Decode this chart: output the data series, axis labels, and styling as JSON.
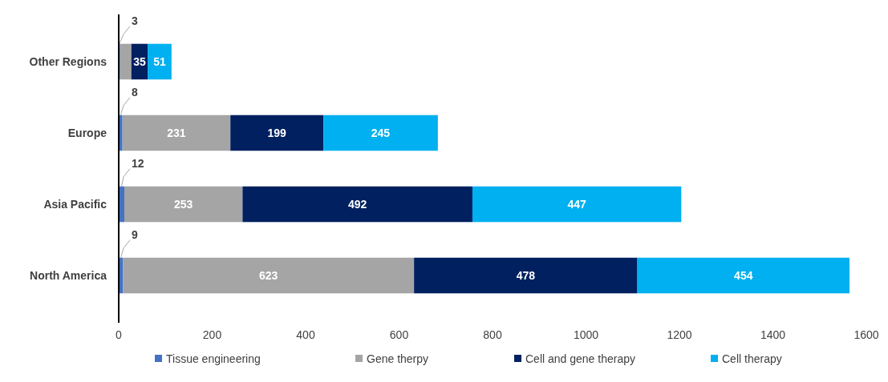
{
  "chart_data": {
    "type": "bar",
    "orientation": "horizontal",
    "stacked": true,
    "categories": [
      "Other Regions",
      "Europe",
      "Asia Pacific",
      "North America"
    ],
    "series": [
      {
        "name": "Tissue engineering",
        "color": "#4472c4",
        "values": [
          3,
          8,
          12,
          9
        ],
        "value_labels": [
          "3",
          "8",
          "12",
          "9"
        ]
      },
      {
        "name": "Gene therpy",
        "color": "#a5a5a5",
        "values": [
          24,
          231,
          253,
          623
        ],
        "value_labels": [
          null,
          "231",
          "253",
          "623"
        ]
      },
      {
        "name": "Cell and gene therapy",
        "color": "#002060",
        "values": [
          35,
          199,
          492,
          478
        ],
        "value_labels": [
          "35",
          "199",
          "492",
          "478"
        ]
      },
      {
        "name": "Cell therapy",
        "color": "#00b0f0",
        "values": [
          51,
          245,
          447,
          454
        ],
        "value_labels": [
          "51",
          "245",
          "447",
          "454"
        ]
      }
    ],
    "xlim": [
      0,
      1600
    ],
    "xticks": [
      0,
      200,
      400,
      600,
      800,
      1000,
      1200,
      1400,
      1600
    ],
    "legend": "bottom",
    "grid": false
  }
}
